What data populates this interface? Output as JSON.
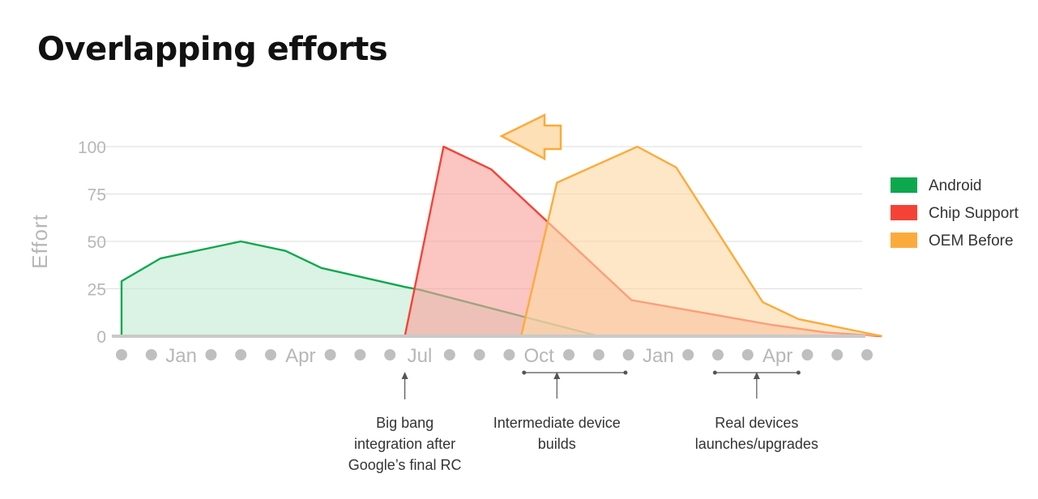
{
  "title": "Overlapping efforts",
  "chart_data": {
    "type": "area",
    "ylabel": "Effort",
    "ylim": [
      0,
      100
    ],
    "yticks": [
      0,
      25,
      50,
      75,
      100
    ],
    "grid": true,
    "legend_position": "right",
    "x_slots": 26,
    "x_tick_labels": [
      {
        "slot": 2,
        "label": "Jan"
      },
      {
        "slot": 6,
        "label": "Apr"
      },
      {
        "slot": 10,
        "label": "Jul"
      },
      {
        "slot": 14,
        "label": "Oct"
      },
      {
        "slot": 18,
        "label": "Jan"
      },
      {
        "slot": 22,
        "label": "Apr"
      }
    ],
    "series": [
      {
        "name": "Android",
        "line_color": "#0da84e",
        "fill_color": "#c4ecd3",
        "points": [
          [
            0,
            0
          ],
          [
            0,
            29
          ],
          [
            1.3,
            41
          ],
          [
            4,
            50
          ],
          [
            5.5,
            45
          ],
          [
            6.7,
            36
          ],
          [
            9.5,
            26
          ],
          [
            10,
            24.5
          ],
          [
            16,
            0
          ]
        ]
      },
      {
        "name": "Chip Support",
        "line_color": "#f44336",
        "fill_color": "#f8a29c",
        "points": [
          [
            9.5,
            0
          ],
          [
            10.8,
            100
          ],
          [
            12.4,
            88
          ],
          [
            17.1,
            19
          ],
          [
            21.8,
            6
          ],
          [
            23.6,
            2
          ],
          [
            25.5,
            0
          ]
        ]
      },
      {
        "name": "OEM Before",
        "line_color": "#fbab3c",
        "fill_color": "#fbd9a5",
        "points": [
          [
            13.4,
            0
          ],
          [
            14.6,
            81
          ],
          [
            17.3,
            100
          ],
          [
            18.6,
            89
          ],
          [
            21.5,
            18
          ],
          [
            22.7,
            9
          ],
          [
            25.5,
            0
          ]
        ]
      }
    ],
    "annotations": [
      {
        "slot": 9.5,
        "lines": [
          "Big bang",
          "integration after",
          "Google’s final RC"
        ]
      },
      {
        "slot": 14.6,
        "range": [
          13.5,
          16.9
        ],
        "lines": [
          "Intermediate device",
          "builds"
        ]
      },
      {
        "slot": 21.3,
        "range": [
          19.9,
          22.7
        ],
        "lines": [
          "Real devices",
          "launches/upgrades"
        ]
      }
    ]
  },
  "colors": {
    "grid": "#dedede",
    "axis": "#c9c9c9",
    "dot": "#bfbfbf",
    "muted_text": "#b7b7b7",
    "arrow_fill": "#fde0b5",
    "arrow_stroke": "#fbab3c"
  }
}
